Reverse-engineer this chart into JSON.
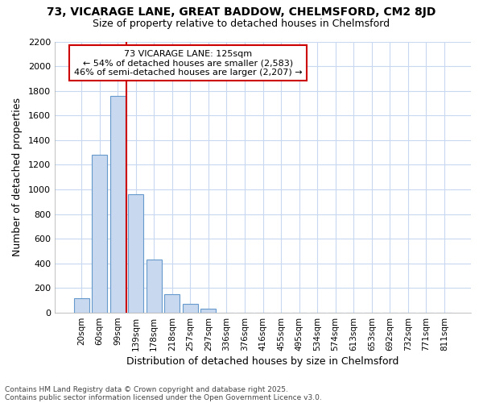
{
  "title_line1": "73, VICARAGE LANE, GREAT BADDOW, CHELMSFORD, CM2 8JD",
  "title_line2": "Size of property relative to detached houses in Chelmsford",
  "xlabel": "Distribution of detached houses by size in Chelmsford",
  "ylabel": "Number of detached properties",
  "bar_values": [
    115,
    1280,
    1760,
    960,
    430,
    150,
    70,
    35,
    0,
    0,
    0,
    0,
    0,
    0,
    0,
    0,
    0,
    0,
    0,
    0,
    0
  ],
  "bar_color": "#c8d8ee",
  "bar_edge_color": "#6699cc",
  "x_labels": [
    "20sqm",
    "60sqm",
    "99sqm",
    "139sqm",
    "178sqm",
    "218sqm",
    "257sqm",
    "297sqm",
    "336sqm",
    "376sqm",
    "416sqm",
    "455sqm",
    "495sqm",
    "534sqm",
    "574sqm",
    "613sqm",
    "653sqm",
    "692sqm",
    "732sqm",
    "771sqm",
    "811sqm"
  ],
  "ylim": [
    0,
    2200
  ],
  "yticks": [
    0,
    200,
    400,
    600,
    800,
    1000,
    1200,
    1400,
    1600,
    1800,
    2000,
    2200
  ],
  "vline_x_index": 3,
  "annotation_text_line1": "73 VICARAGE LANE: 125sqm",
  "annotation_text_line2": "← 54% of detached houses are smaller (2,583)",
  "annotation_text_line3": "46% of semi-detached houses are larger (2,207) →",
  "vline_color": "#cc0000",
  "annotation_box_edge": "#cc0000",
  "footnote_line1": "Contains HM Land Registry data © Crown copyright and database right 2025.",
  "footnote_line2": "Contains public sector information licensed under the Open Government Licence v3.0.",
  "background_color": "#ffffff",
  "plot_bg_color": "#ffffff",
  "grid_color": "#c8d8f0"
}
